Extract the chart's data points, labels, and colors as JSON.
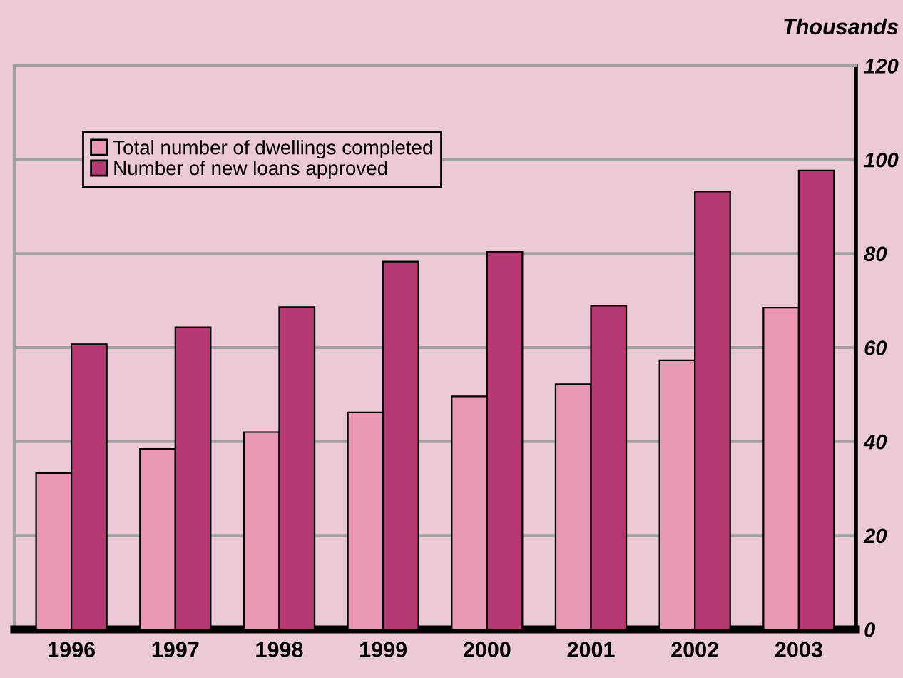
{
  "chart_data": {
    "type": "bar",
    "ylabel": "Thousands",
    "categories": [
      "1996",
      "1997",
      "1998",
      "1999",
      "2000",
      "2001",
      "2002",
      "2003"
    ],
    "series": [
      {
        "name": "Total number of dwellings completed",
        "color": "#eb98b6",
        "values": [
          33.3,
          38.4,
          42.0,
          46.2,
          49.6,
          52.2,
          57.3,
          68.5
        ]
      },
      {
        "name": "Number of new loans approved",
        "color": "#b53a73",
        "values": [
          60.7,
          64.3,
          68.6,
          78.3,
          80.4,
          68.9,
          93.2,
          97.7
        ]
      }
    ],
    "ylim": [
      0,
      120
    ],
    "yticks": [
      0,
      20,
      40,
      60,
      80,
      100,
      120
    ],
    "grid": "y",
    "legend": "top left"
  }
}
